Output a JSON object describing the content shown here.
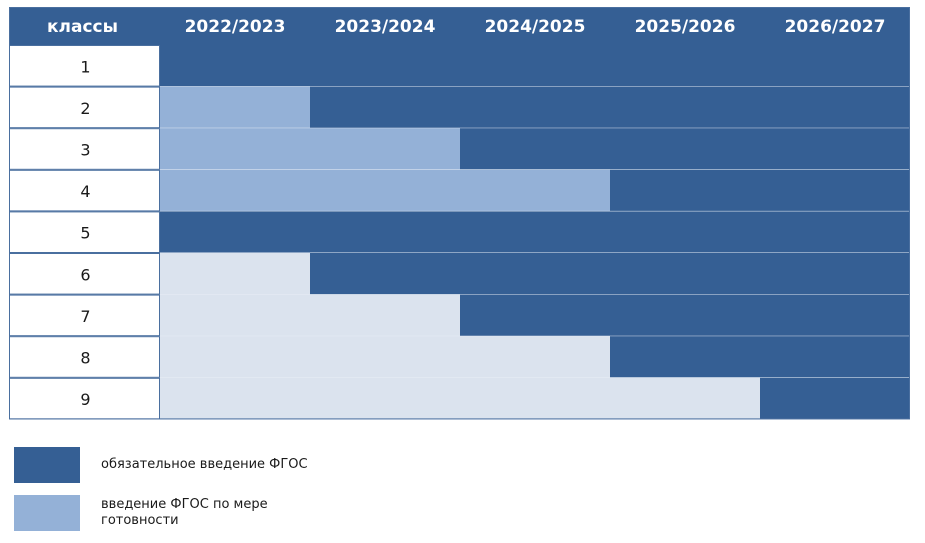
{
  "chart_data": {
    "type": "table",
    "header_label": "классы",
    "years": [
      "2022/2023",
      "2023/2024",
      "2024/2025",
      "2025/2026",
      "2026/2027"
    ],
    "rows": [
      {
        "class": "1",
        "status": [
          "mandatory",
          "mandatory",
          "mandatory",
          "mandatory",
          "mandatory"
        ]
      },
      {
        "class": "2",
        "status": [
          "readiness",
          "mandatory",
          "mandatory",
          "mandatory",
          "mandatory"
        ]
      },
      {
        "class": "3",
        "status": [
          "readiness",
          "readiness",
          "mandatory",
          "mandatory",
          "mandatory"
        ]
      },
      {
        "class": "4",
        "status": [
          "readiness",
          "readiness",
          "readiness",
          "mandatory",
          "mandatory"
        ]
      },
      {
        "class": "5",
        "status": [
          "mandatory",
          "mandatory",
          "mandatory",
          "mandatory",
          "mandatory"
        ]
      },
      {
        "class": "6",
        "status": [
          "unlabeled",
          "mandatory",
          "mandatory",
          "mandatory",
          "mandatory"
        ]
      },
      {
        "class": "7",
        "status": [
          "unlabeled",
          "unlabeled",
          "mandatory",
          "mandatory",
          "mandatory"
        ]
      },
      {
        "class": "8",
        "status": [
          "unlabeled",
          "unlabeled",
          "unlabeled",
          "mandatory",
          "mandatory"
        ]
      },
      {
        "class": "9",
        "status": [
          "unlabeled",
          "unlabeled",
          "unlabeled",
          "unlabeled",
          "mandatory"
        ]
      }
    ]
  },
  "colors": {
    "header_bg": "#355f94",
    "mandatory": "#355f94",
    "readiness": "#94b1d7",
    "unlabeled": "#dbe3ee",
    "class_cell": "#ffffff",
    "border": "#e8eef6",
    "outline": "#4a6f9f"
  },
  "legend": {
    "mandatory_label": "обязательное введение ФГОС",
    "readiness_label": "введение ФГОС по мере готовности"
  }
}
